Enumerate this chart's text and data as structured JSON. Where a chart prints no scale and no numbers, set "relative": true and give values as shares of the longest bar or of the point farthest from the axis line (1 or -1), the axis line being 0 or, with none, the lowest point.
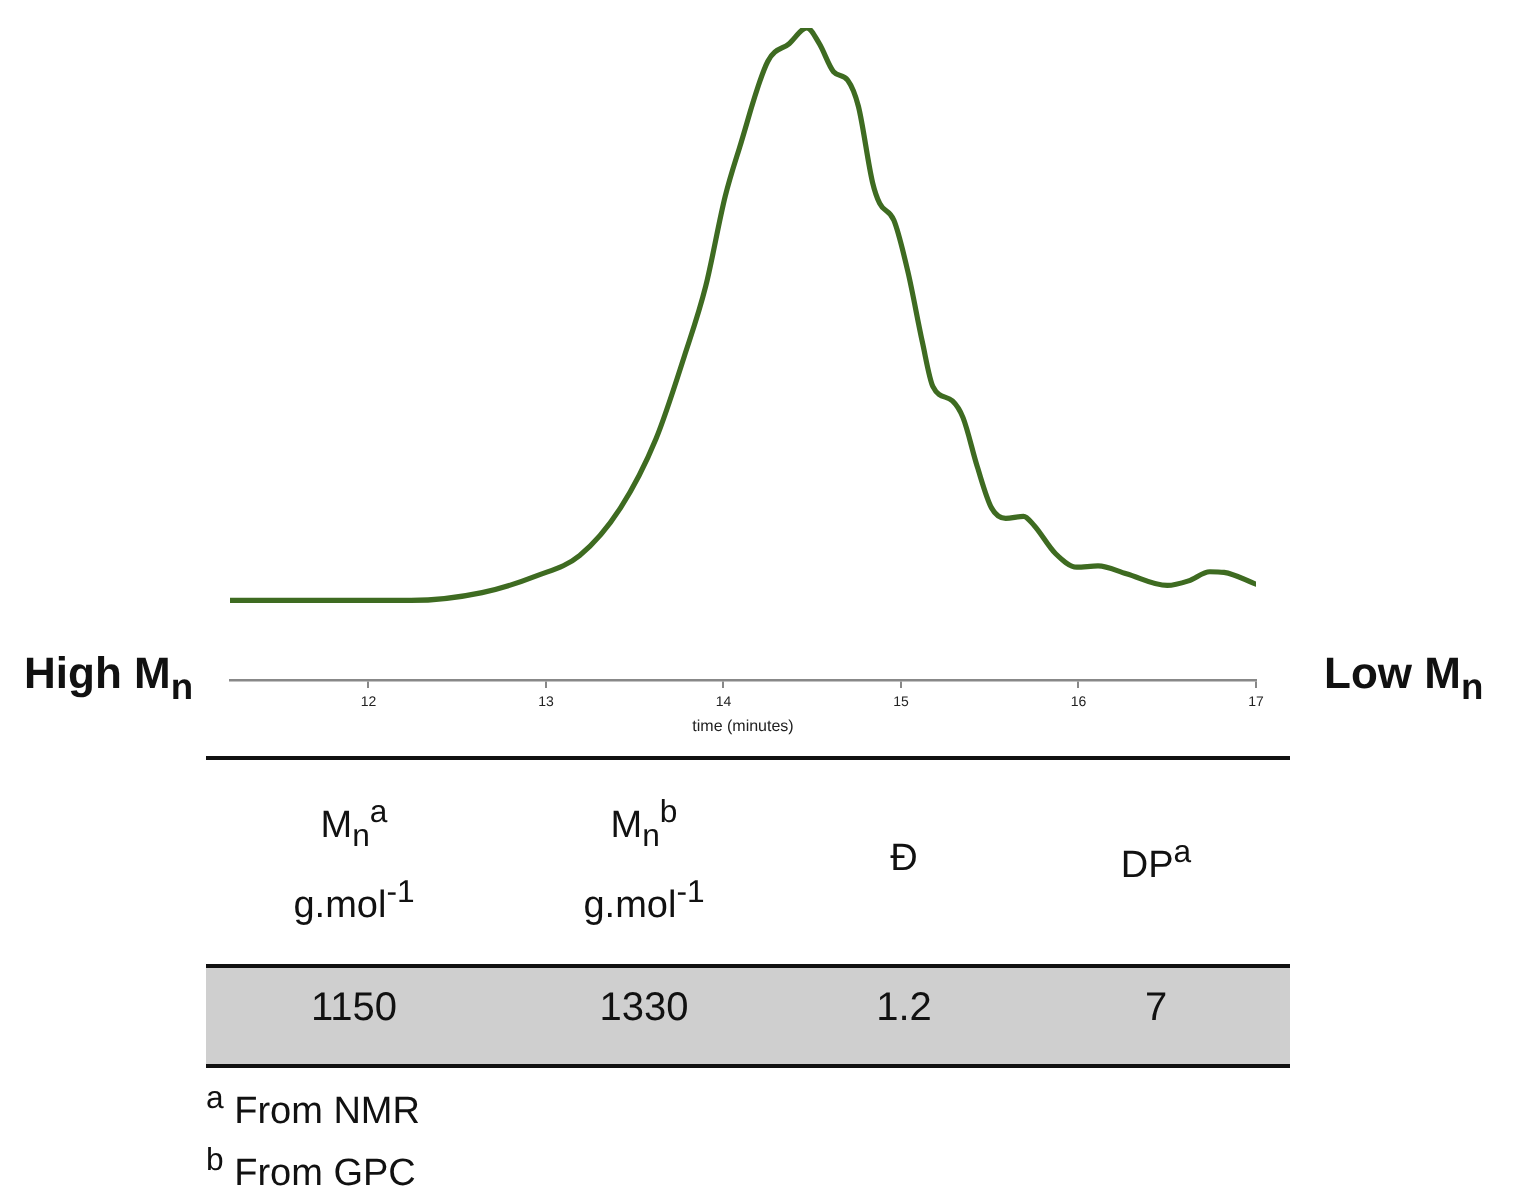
{
  "chart_data": {
    "type": "line",
    "relative": true,
    "xlabel": "time (minutes)",
    "xlim": [
      11.22,
      17
    ],
    "xticks": [
      12,
      13,
      14,
      15,
      16,
      17
    ],
    "grid": false,
    "legend": false,
    "marker": "none",
    "line_style": "solid",
    "tick_labels": "x",
    "x": [
      11.22,
      12.24,
      12.64,
      12.95,
      13.19,
      13.42,
      13.62,
      13.78,
      13.9,
      14.01,
      14.09,
      14.25,
      14.37,
      14.47,
      14.54,
      14.62,
      14.7,
      14.76,
      14.84,
      14.88,
      14.96,
      15.04,
      15.12,
      15.18,
      15.29,
      15.35,
      15.43,
      15.51,
      15.59,
      15.69,
      15.75,
      15.87,
      15.99,
      16.11,
      16.27,
      16.5,
      16.62,
      16.74,
      16.82,
      17
    ],
    "series": [
      {
        "color": "#3e6b21",
        "values": [
          0.122,
          0.122,
          0.134,
          0.16,
          0.191,
          0.264,
          0.37,
          0.497,
          0.604,
          0.742,
          0.816,
          0.949,
          0.976,
          1,
          0.976,
          0.933,
          0.92,
          0.88,
          0.763,
          0.731,
          0.705,
          0.625,
          0.519,
          0.45,
          0.428,
          0.402,
          0.327,
          0.264,
          0.248,
          0.251,
          0.237,
          0.194,
          0.173,
          0.175,
          0.163,
          0.145,
          0.152,
          0.166,
          0.165,
          0.147
        ]
      }
    ],
    "annotations": [
      "High M$_{n}$",
      "Low M$_{n}$",
      "M$_{n}$$^{a}$\ng.mol$^{-1}$",
      "M$_{n}$$^{b}$\ng.mol$^{-1}$",
      "Đ",
      "DP$^{a}$",
      "1150",
      "1330",
      "1.2",
      "7",
      "$^{a}$ From NMR",
      "$^{b}$ From GPC"
    ]
  }
}
